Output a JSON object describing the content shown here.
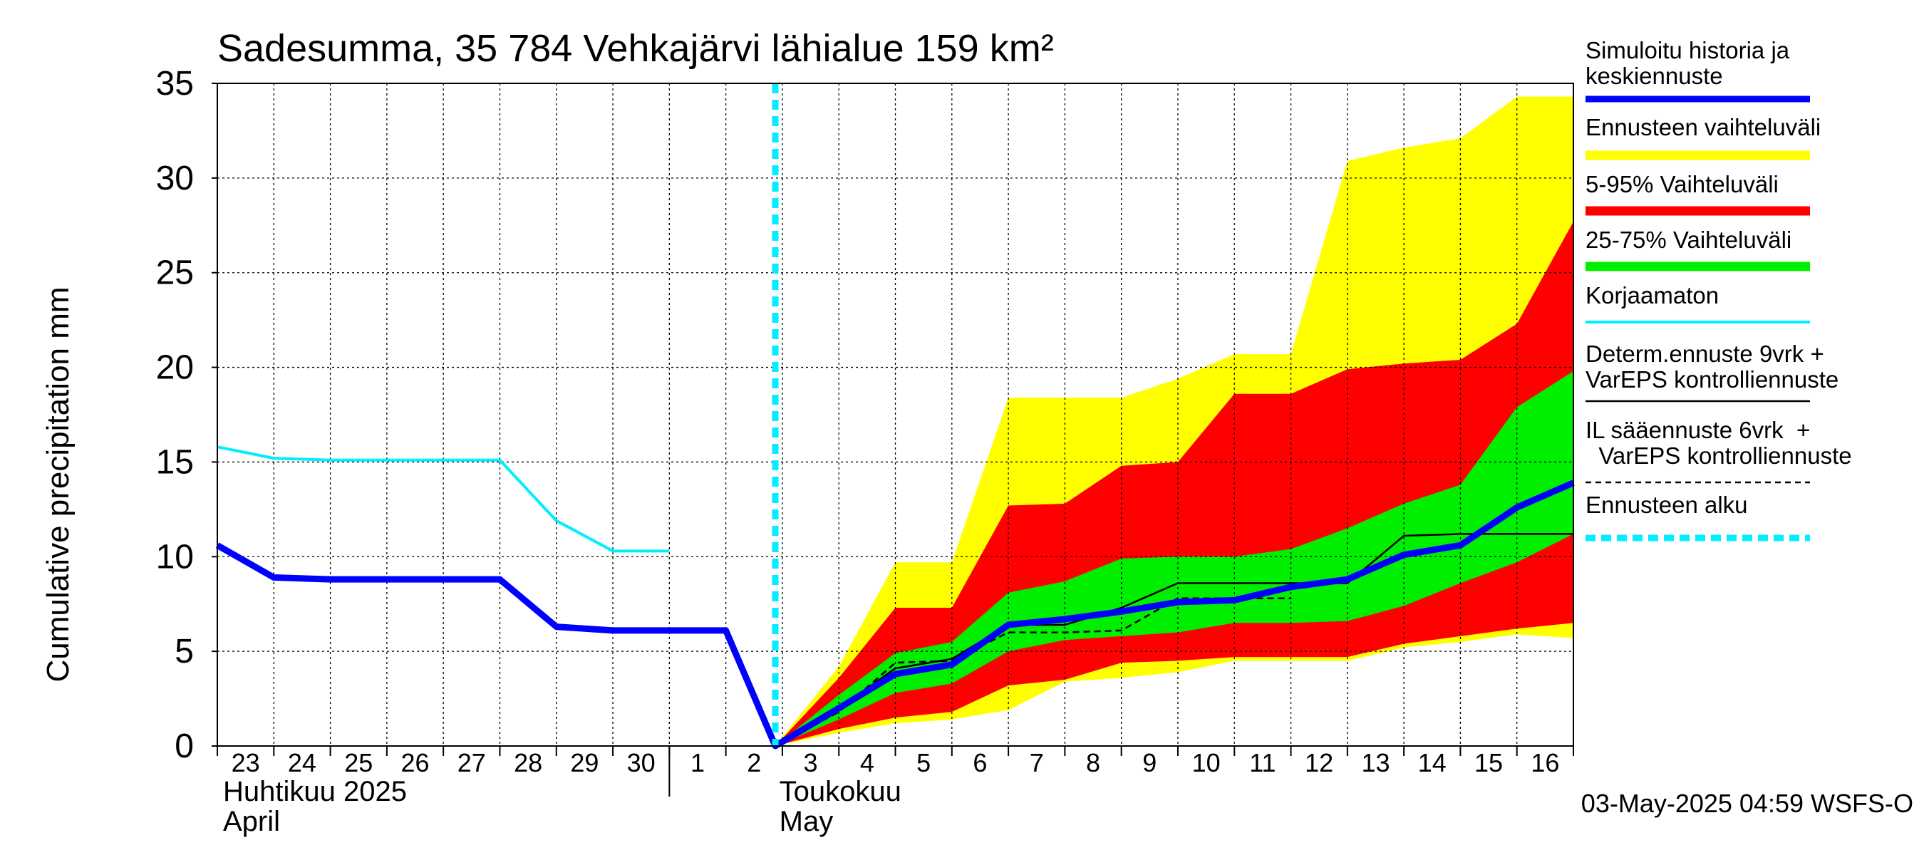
{
  "chart_data": {
    "type": "area",
    "title": "Sadesumma, 35 784 Vehkajärvi lähialue 159 km²",
    "ylabel": "Cumulative precipitation   mm",
    "ylim": [
      0,
      35
    ],
    "y_ticks": [
      0,
      5,
      10,
      15,
      20,
      25,
      30,
      35
    ],
    "x_start": "2025-04-23",
    "x_end": "2025-05-16",
    "x_tick_labels": [
      "23",
      "24",
      "25",
      "26",
      "27",
      "28",
      "29",
      "30",
      "1",
      "2",
      "3",
      "4",
      "5",
      "6",
      "7",
      "8",
      "9",
      "10",
      "11",
      "12",
      "13",
      "14",
      "15",
      "16"
    ],
    "month_labels": [
      {
        "line1": "Huhtikuu  2025",
        "line2": "April",
        "date": "2025-04-23"
      },
      {
        "line1": "Toukokuu",
        "line2": "May",
        "date": "2025-05-02"
      }
    ],
    "forecast_start": "2025-05-02T21:00",
    "grid": true,
    "legend_position": "right",
    "footer": "03-May-2025 04:59 WSFS-O",
    "series": [
      {
        "name": "Simuloitu historia ja keskiennuste",
        "color": "#0000ff",
        "style": "thick",
        "points": [
          [
            "2025-04-23",
            10.6
          ],
          [
            "2025-04-24",
            8.9
          ],
          [
            "2025-04-25",
            8.8
          ],
          [
            "2025-04-26",
            8.8
          ],
          [
            "2025-04-27",
            8.8
          ],
          [
            "2025-04-28",
            8.8
          ],
          [
            "2025-04-29",
            6.3
          ],
          [
            "2025-04-30",
            6.1
          ],
          [
            "2025-05-01",
            6.1
          ],
          [
            "2025-05-02",
            6.1
          ],
          [
            "2025-05-02T21:00",
            0
          ],
          [
            "2025-05-04",
            2.0
          ],
          [
            "2025-05-05",
            3.8
          ],
          [
            "2025-05-06",
            4.3
          ],
          [
            "2025-05-07",
            6.4
          ],
          [
            "2025-05-08",
            6.7
          ],
          [
            "2025-05-09",
            7.1
          ],
          [
            "2025-05-10",
            7.6
          ],
          [
            "2025-05-11",
            7.7
          ],
          [
            "2025-05-12",
            8.4
          ],
          [
            "2025-05-13",
            8.8
          ],
          [
            "2025-05-14",
            10.1
          ],
          [
            "2025-05-15",
            10.6
          ],
          [
            "2025-05-16",
            12.6
          ],
          [
            "2025-05-17",
            13.9
          ]
        ]
      },
      {
        "name": "Ennusteen vaihteluväli",
        "color": "#ffff00",
        "style": "band",
        "x": [
          "2025-05-02T21:00",
          "2025-05-04",
          "2025-05-05",
          "2025-05-06",
          "2025-05-07",
          "2025-05-08",
          "2025-05-09",
          "2025-05-10",
          "2025-05-11",
          "2025-05-12",
          "2025-05-13",
          "2025-05-14",
          "2025-05-15",
          "2025-05-16",
          "2025-05-17"
        ],
        "upper": [
          0,
          4.2,
          9.7,
          9.7,
          18.4,
          18.4,
          18.4,
          19.4,
          20.7,
          20.7,
          30.9,
          31.6,
          32.1,
          34.3,
          34.3
        ],
        "lower": [
          0,
          0.7,
          1.2,
          1.4,
          1.9,
          3.4,
          3.6,
          3.9,
          4.5,
          4.5,
          4.5,
          5.2,
          5.5,
          5.9,
          5.7
        ]
      },
      {
        "name": "5-95% Vaihteluväli",
        "color": "#ff0000",
        "style": "band",
        "x": [
          "2025-05-02T21:00",
          "2025-05-04",
          "2025-05-05",
          "2025-05-06",
          "2025-05-07",
          "2025-05-08",
          "2025-05-09",
          "2025-05-10",
          "2025-05-11",
          "2025-05-12",
          "2025-05-13",
          "2025-05-14",
          "2025-05-15",
          "2025-05-16",
          "2025-05-17"
        ],
        "upper": [
          0,
          3.6,
          7.3,
          7.3,
          12.7,
          12.8,
          14.8,
          15.0,
          18.6,
          18.6,
          19.9,
          20.2,
          20.4,
          22.3,
          27.7
        ],
        "lower": [
          0,
          0.9,
          1.5,
          1.8,
          3.2,
          3.5,
          4.4,
          4.5,
          4.7,
          4.7,
          4.7,
          5.4,
          5.8,
          6.2,
          6.5
        ]
      },
      {
        "name": "25-75% Vaihteluväli",
        "color": "#00ee00",
        "style": "band",
        "x": [
          "2025-05-02T21:00",
          "2025-05-04",
          "2025-05-05",
          "2025-05-06",
          "2025-05-07",
          "2025-05-08",
          "2025-05-09",
          "2025-05-10",
          "2025-05-11",
          "2025-05-12",
          "2025-05-13",
          "2025-05-14",
          "2025-05-15",
          "2025-05-16",
          "2025-05-17"
        ],
        "upper": [
          0,
          2.7,
          4.9,
          5.5,
          8.1,
          8.7,
          9.9,
          10.0,
          10.0,
          10.4,
          11.5,
          12.8,
          13.8,
          17.9,
          19.8
        ],
        "lower": [
          0,
          1.4,
          2.8,
          3.3,
          5.0,
          5.6,
          5.8,
          6.0,
          6.5,
          6.5,
          6.6,
          7.4,
          8.6,
          9.7,
          11.2
        ]
      },
      {
        "name": "Korjaamaton",
        "color": "#00eeff",
        "style": "line",
        "points": [
          [
            "2025-04-23",
            15.8
          ],
          [
            "2025-04-24",
            15.2
          ],
          [
            "2025-04-25",
            15.1
          ],
          [
            "2025-04-26",
            15.1
          ],
          [
            "2025-04-27",
            15.1
          ],
          [
            "2025-04-28",
            15.1
          ],
          [
            "2025-04-29",
            11.9
          ],
          [
            "2025-04-30",
            10.3
          ],
          [
            "2025-05-01",
            10.3
          ]
        ]
      },
      {
        "name": "Determ.ennuste 9vrk + VarEPS kontrolliennuste",
        "color": "#000000",
        "style": "thin",
        "points": [
          [
            "2025-05-02T21:00",
            0
          ],
          [
            "2025-05-04",
            2.0
          ],
          [
            "2025-05-05",
            4.1
          ],
          [
            "2025-05-06",
            4.6
          ],
          [
            "2025-05-07",
            6.4
          ],
          [
            "2025-05-08",
            6.4
          ],
          [
            "2025-05-09",
            7.3
          ],
          [
            "2025-05-10",
            8.6
          ],
          [
            "2025-05-11",
            8.6
          ],
          [
            "2025-05-12",
            8.6
          ],
          [
            "2025-05-13",
            8.6
          ],
          [
            "2025-05-14",
            11.1
          ],
          [
            "2025-05-15",
            11.2
          ],
          [
            "2025-05-16",
            11.2
          ],
          [
            "2025-05-17",
            11.2
          ]
        ]
      },
      {
        "name": "IL sääennuste 6vrk  +\n  VarEPS kontrolliennuste",
        "color": "#000000",
        "style": "dashed",
        "points": [
          [
            "2025-05-02T21:00",
            0
          ],
          [
            "2025-05-04",
            1.8
          ],
          [
            "2025-05-05",
            4.4
          ],
          [
            "2025-05-06",
            4.5
          ],
          [
            "2025-05-07",
            6.0
          ],
          [
            "2025-05-08",
            6.0
          ],
          [
            "2025-05-09",
            6.1
          ],
          [
            "2025-05-10",
            7.8
          ],
          [
            "2025-05-11",
            7.8
          ],
          [
            "2025-05-12",
            7.8
          ]
        ]
      },
      {
        "name": "Ennusteen alku",
        "color": "#00eeff",
        "style": "dotted-vertical"
      }
    ]
  }
}
